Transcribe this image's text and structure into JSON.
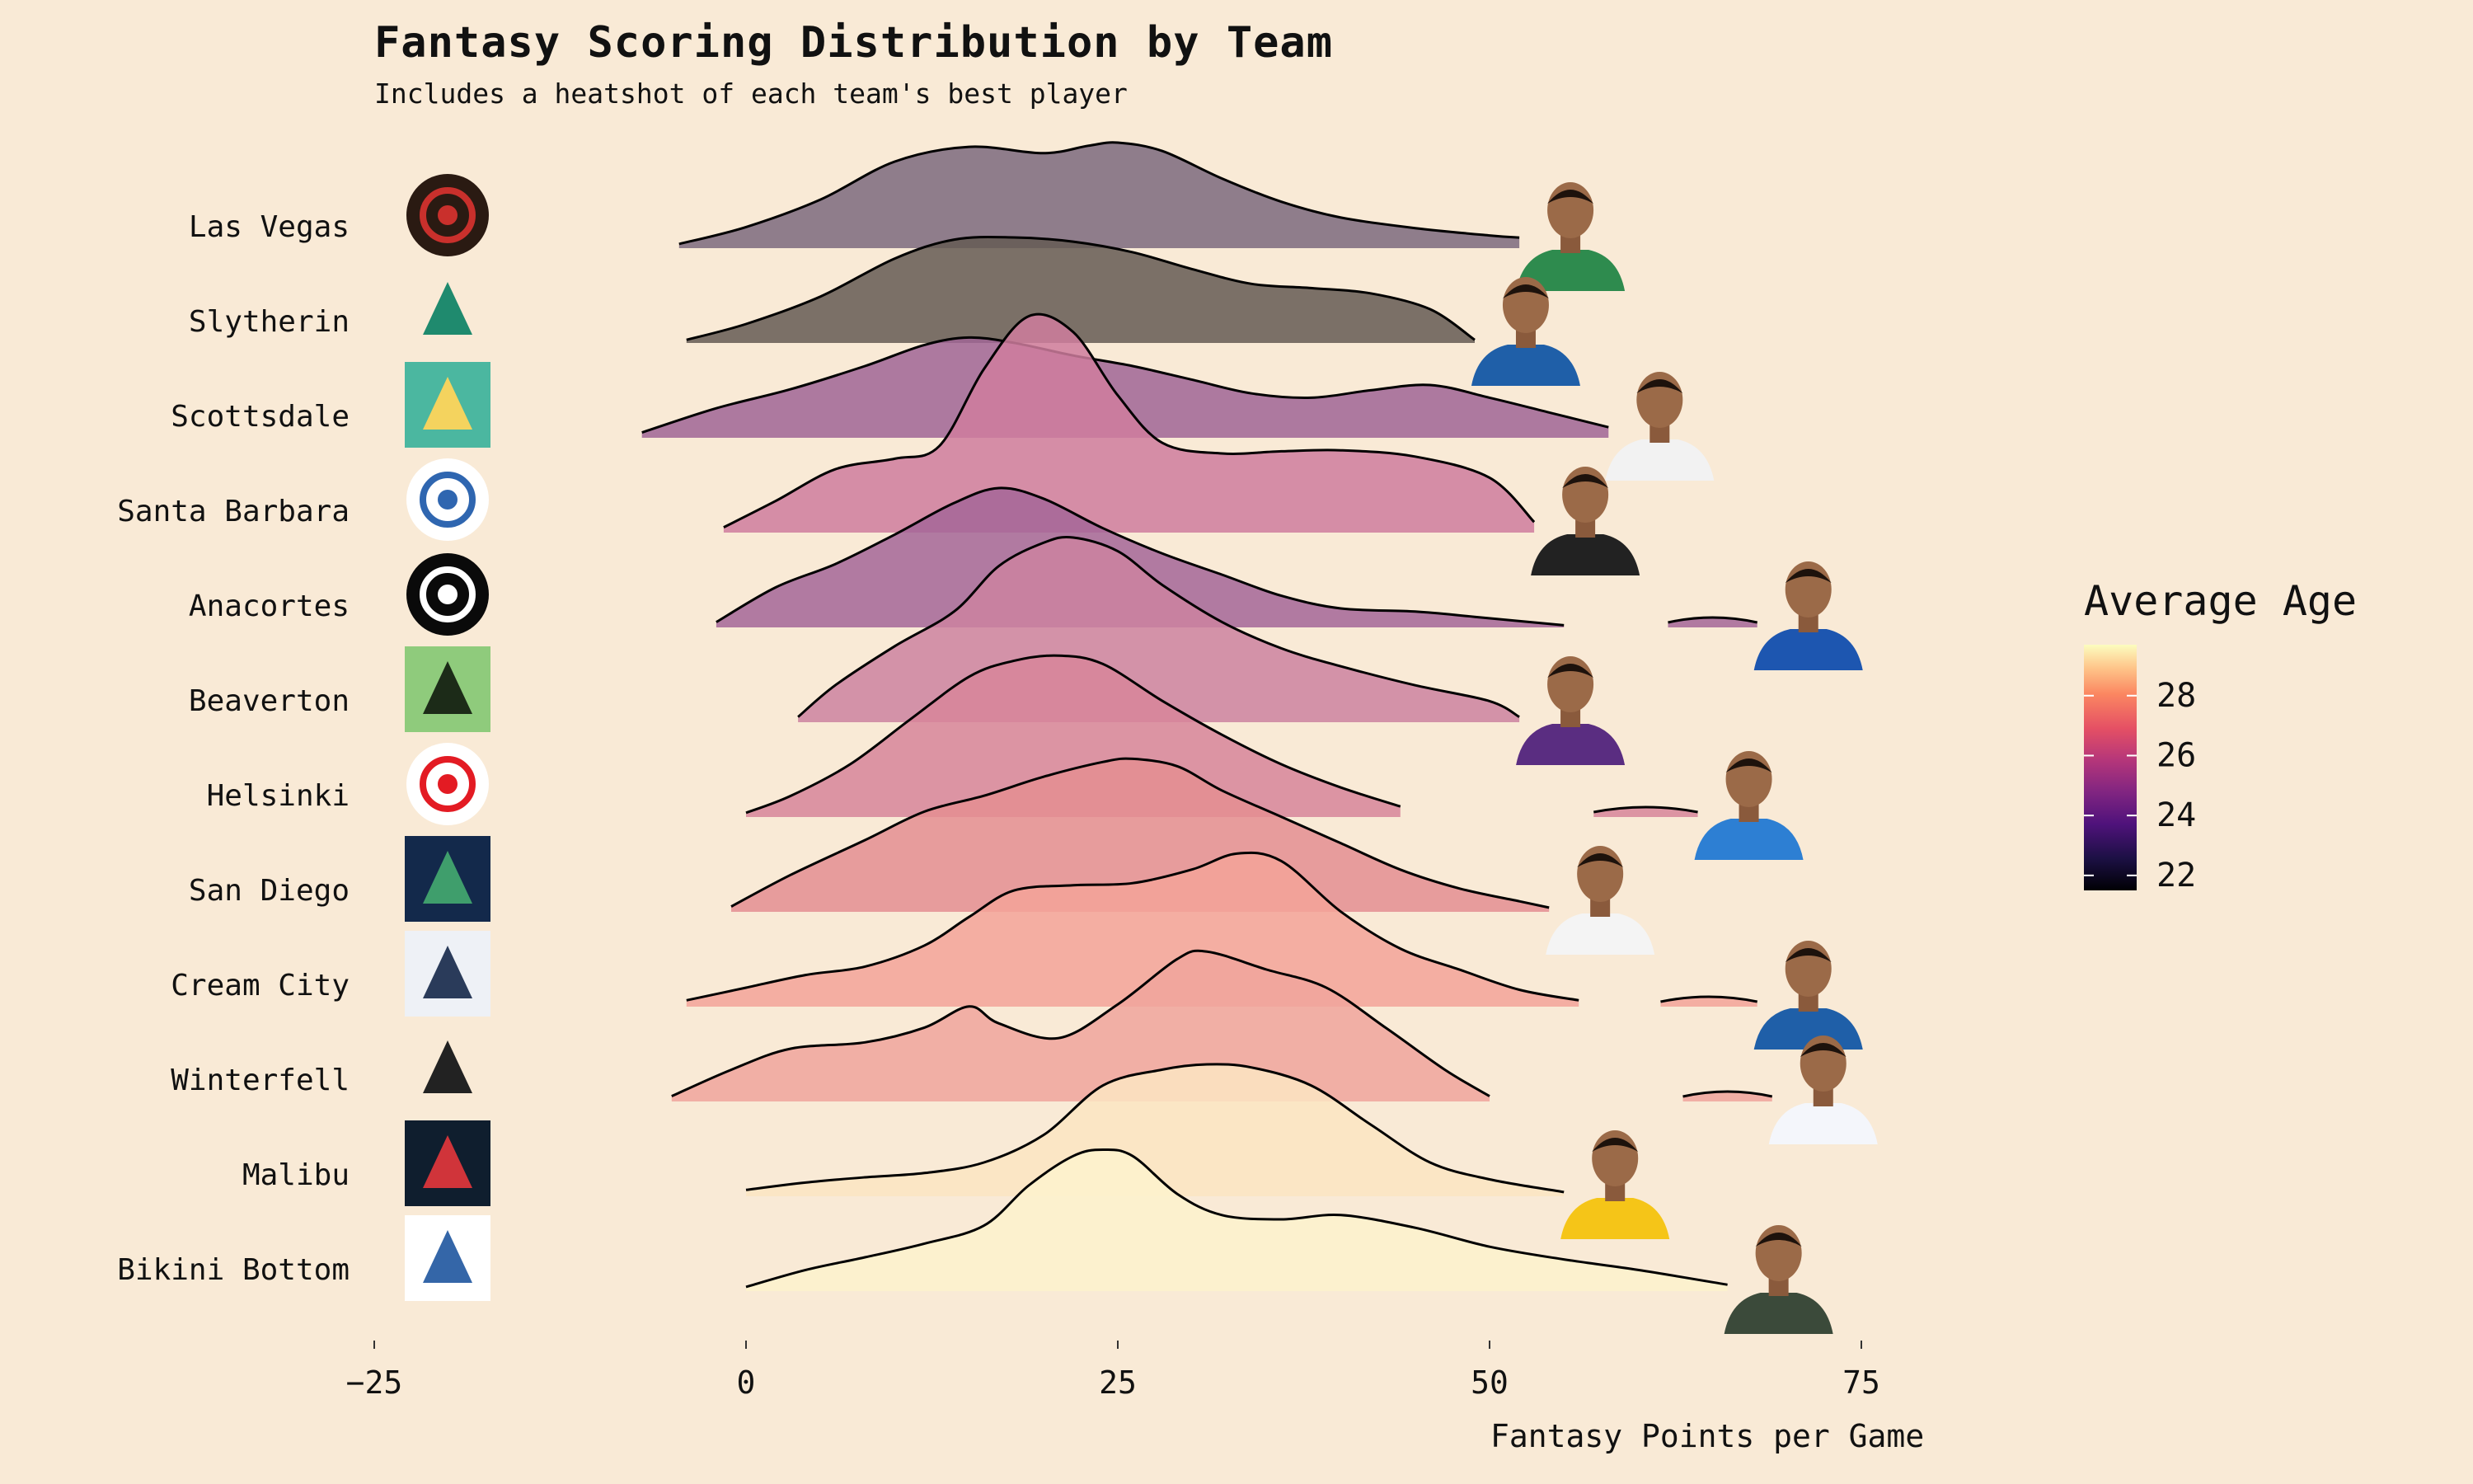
{
  "title": "Fantasy Scoring Distribution by Team",
  "subtitle": "Includes a heatshot of each team's best player",
  "chart_data": {
    "type": "ridgeline",
    "xlabel": "Fantasy Points per Game",
    "ylabel": "",
    "xlim": [
      -25,
      90
    ],
    "xticks": [
      -25,
      0,
      25,
      50,
      75
    ],
    "grid": false,
    "legend": {
      "title": "Average Age",
      "placement": "right",
      "range": [
        21.5,
        29.7
      ],
      "ticks": [
        22,
        24,
        26,
        28
      ],
      "colormap": "magma"
    },
    "series": [
      {
        "name": "Las Vegas",
        "avg_age": 22.3,
        "color": "#7d6a7e",
        "logo": "sin-city-scorpions",
        "best_player_jersey": "boston",
        "knots": [
          [
            -4.5,
            0.04
          ],
          [
            0,
            0.2
          ],
          [
            5,
            0.46
          ],
          [
            10,
            0.82
          ],
          [
            15,
            0.96
          ],
          [
            20,
            0.9
          ],
          [
            23,
            0.97
          ],
          [
            25,
            1.0
          ],
          [
            28,
            0.92
          ],
          [
            32,
            0.66
          ],
          [
            36,
            0.44
          ],
          [
            40,
            0.29
          ],
          [
            45,
            0.19
          ],
          [
            50,
            0.12
          ],
          [
            52,
            0.1
          ]
        ]
      },
      {
        "name": "Slytherin",
        "avg_age": 21.8,
        "color": "#655b53",
        "logo": "slytherin",
        "best_player_jersey": "denver",
        "knots": [
          [
            -4,
            0.03
          ],
          [
            0,
            0.18
          ],
          [
            5,
            0.44
          ],
          [
            10,
            0.8
          ],
          [
            14,
            0.98
          ],
          [
            18,
            1.0
          ],
          [
            22,
            0.96
          ],
          [
            26,
            0.86
          ],
          [
            30,
            0.7
          ],
          [
            34,
            0.56
          ],
          [
            38,
            0.52
          ],
          [
            42,
            0.47
          ],
          [
            46,
            0.32
          ],
          [
            49,
            0.03
          ]
        ]
      },
      {
        "name": "Scottsdale",
        "avg_age": 24.3,
        "color": "#a06595",
        "logo": "cartoon-kid",
        "best_player_jersey": "indiana",
        "knots": [
          [
            -7,
            0.05
          ],
          [
            -2,
            0.28
          ],
          [
            3,
            0.46
          ],
          [
            8,
            0.68
          ],
          [
            12,
            0.88
          ],
          [
            15,
            0.95
          ],
          [
            18,
            0.9
          ],
          [
            22,
            0.78
          ],
          [
            26,
            0.68
          ],
          [
            30,
            0.55
          ],
          [
            34,
            0.42
          ],
          [
            38,
            0.38
          ],
          [
            42,
            0.45
          ],
          [
            46,
            0.5
          ],
          [
            50,
            0.38
          ],
          [
            54,
            0.24
          ],
          [
            58,
            0.1
          ]
        ]
      },
      {
        "name": "Santa Barbara",
        "avg_age": 25.8,
        "color": "#cf7d9d",
        "logo": "shark",
        "best_player_jersey": "san-antonio",
        "knots": [
          [
            -1.5,
            0.05
          ],
          [
            2,
            0.3
          ],
          [
            6,
            0.6
          ],
          [
            10,
            0.7
          ],
          [
            13,
            0.82
          ],
          [
            16,
            1.55
          ],
          [
            19,
            2.05
          ],
          [
            22,
            1.9
          ],
          [
            25,
            1.3
          ],
          [
            28,
            0.85
          ],
          [
            32,
            0.75
          ],
          [
            36,
            0.77
          ],
          [
            40,
            0.78
          ],
          [
            45,
            0.72
          ],
          [
            50,
            0.52
          ],
          [
            53,
            0.1
          ]
        ]
      },
      {
        "name": "Anacortes",
        "avg_age": 24.6,
        "color": "#a56698",
        "logo": "orcas",
        "best_player_jersey": "philadelphia",
        "knots": [
          [
            -2,
            0.05
          ],
          [
            2,
            0.38
          ],
          [
            6,
            0.6
          ],
          [
            10,
            0.88
          ],
          [
            14,
            1.18
          ],
          [
            17,
            1.32
          ],
          [
            20,
            1.22
          ],
          [
            24,
            0.94
          ],
          [
            28,
            0.7
          ],
          [
            32,
            0.5
          ],
          [
            36,
            0.3
          ],
          [
            40,
            0.18
          ],
          [
            45,
            0.15
          ],
          [
            49,
            0.1
          ],
          [
            55,
            0.02
          ]
        ]
      },
      {
        "name": "Beaverton",
        "avg_age": 26.0,
        "color": "#cc82a0",
        "logo": "bigfoot",
        "best_player_jersey": "sacramento",
        "knots": [
          [
            3.5,
            0.05
          ],
          [
            6,
            0.35
          ],
          [
            10,
            0.72
          ],
          [
            14,
            1.05
          ],
          [
            17,
            1.48
          ],
          [
            20,
            1.7
          ],
          [
            22,
            1.75
          ],
          [
            25,
            1.62
          ],
          [
            28,
            1.3
          ],
          [
            32,
            0.95
          ],
          [
            36,
            0.7
          ],
          [
            40,
            0.53
          ],
          [
            45,
            0.35
          ],
          [
            50,
            0.2
          ],
          [
            52,
            0.05
          ]
        ]
      },
      {
        "name": "Helsinki",
        "avg_age": 26.3,
        "color": "#d7859a",
        "logo": "helsinki-hounds",
        "best_player_jersey": "oklahoma-city",
        "knots": [
          [
            0,
            0.04
          ],
          [
            3,
            0.2
          ],
          [
            7,
            0.5
          ],
          [
            11,
            0.92
          ],
          [
            15,
            1.33
          ],
          [
            18,
            1.48
          ],
          [
            21,
            1.53
          ],
          [
            24,
            1.45
          ],
          [
            28,
            1.1
          ],
          [
            32,
            0.78
          ],
          [
            36,
            0.5
          ],
          [
            40,
            0.28
          ],
          [
            44,
            0.1
          ]
        ]
      },
      {
        "name": "San Diego",
        "avg_age": 26.9,
        "color": "#e48e92",
        "logo": "pirate-badge",
        "best_player_jersey": "phoenix",
        "knots": [
          [
            -1,
            0.05
          ],
          [
            3,
            0.35
          ],
          [
            8,
            0.68
          ],
          [
            12,
            0.95
          ],
          [
            16,
            1.1
          ],
          [
            20,
            1.28
          ],
          [
            24,
            1.42
          ],
          [
            26,
            1.45
          ],
          [
            29,
            1.38
          ],
          [
            32,
            1.15
          ],
          [
            36,
            0.9
          ],
          [
            40,
            0.65
          ],
          [
            44,
            0.4
          ],
          [
            48,
            0.22
          ],
          [
            52,
            0.1
          ],
          [
            54,
            0.04
          ]
        ]
      },
      {
        "name": "Cream City",
        "avg_age": 27.6,
        "color": "#f3a399",
        "logo": "knight",
        "best_player_jersey": "denver",
        "knots": [
          [
            -4,
            0.06
          ],
          [
            0,
            0.18
          ],
          [
            4,
            0.3
          ],
          [
            8,
            0.38
          ],
          [
            12,
            0.58
          ],
          [
            15,
            0.85
          ],
          [
            18,
            1.1
          ],
          [
            22,
            1.15
          ],
          [
            26,
            1.17
          ],
          [
            30,
            1.3
          ],
          [
            33,
            1.45
          ],
          [
            36,
            1.38
          ],
          [
            40,
            0.9
          ],
          [
            44,
            0.55
          ],
          [
            48,
            0.35
          ],
          [
            52,
            0.16
          ],
          [
            56,
            0.06
          ]
        ]
      },
      {
        "name": "Winterfell",
        "avg_age": 27.3,
        "color": "#f0a49c",
        "logo": "direwolf",
        "best_player_jersey": "dallas",
        "knots": [
          [
            -5,
            0.05
          ],
          [
            -1,
            0.3
          ],
          [
            3,
            0.5
          ],
          [
            8,
            0.56
          ],
          [
            12,
            0.7
          ],
          [
            15,
            0.9
          ],
          [
            17,
            0.74
          ],
          [
            21,
            0.6
          ],
          [
            25,
            0.92
          ],
          [
            29,
            1.35
          ],
          [
            31,
            1.42
          ],
          [
            35,
            1.25
          ],
          [
            39,
            1.08
          ],
          [
            43,
            0.7
          ],
          [
            47,
            0.3
          ],
          [
            50,
            0.05
          ]
        ]
      },
      {
        "name": "Malibu",
        "avg_age": 28.9,
        "color": "#fbe5c2",
        "logo": "bull",
        "best_player_jersey": "los-angeles",
        "knots": [
          [
            0,
            0.06
          ],
          [
            4,
            0.13
          ],
          [
            8,
            0.18
          ],
          [
            12,
            0.22
          ],
          [
            16,
            0.32
          ],
          [
            20,
            0.58
          ],
          [
            24,
            1.05
          ],
          [
            28,
            1.2
          ],
          [
            31,
            1.25
          ],
          [
            34,
            1.22
          ],
          [
            38,
            1.05
          ],
          [
            42,
            0.68
          ],
          [
            46,
            0.32
          ],
          [
            50,
            0.16
          ],
          [
            55,
            0.04
          ]
        ]
      },
      {
        "name": "Bikini Bottom",
        "avg_age": 29.6,
        "color": "#fdf2cc",
        "logo": "bbb-letters",
        "best_player_jersey": "milwaukee",
        "knots": [
          [
            0,
            0.04
          ],
          [
            4,
            0.2
          ],
          [
            8,
            0.32
          ],
          [
            12,
            0.45
          ],
          [
            16,
            0.62
          ],
          [
            19,
            1.0
          ],
          [
            22,
            1.28
          ],
          [
            24,
            1.34
          ],
          [
            26,
            1.28
          ],
          [
            29,
            0.92
          ],
          [
            32,
            0.72
          ],
          [
            36,
            0.68
          ],
          [
            40,
            0.72
          ],
          [
            45,
            0.6
          ],
          [
            50,
            0.42
          ],
          [
            55,
            0.3
          ],
          [
            60,
            0.2
          ],
          [
            66,
            0.06
          ]
        ]
      }
    ],
    "outlier_segments": [
      {
        "team": "Anacortes",
        "x": [
          62,
          68
        ]
      },
      {
        "team": "Helsinki",
        "x": [
          57,
          64
        ]
      },
      {
        "team": "Cream City",
        "x": [
          61.5,
          68
        ]
      },
      {
        "team": "Winterfell",
        "x": [
          63,
          69
        ]
      }
    ]
  }
}
